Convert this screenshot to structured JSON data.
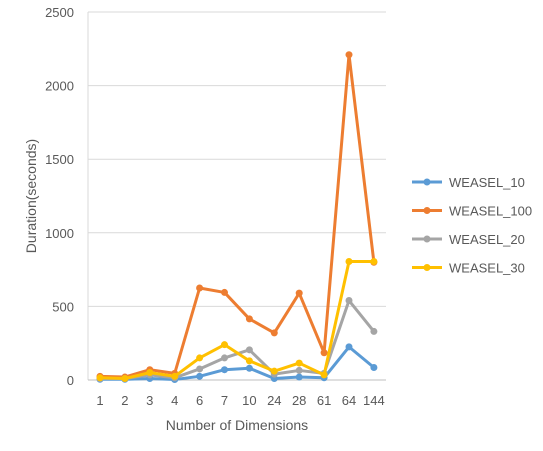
{
  "chart_data": {
    "type": "line",
    "title": "",
    "xlabel": "Number of Dimensions",
    "ylabel": "Duration(seconds)",
    "categories": [
      "1",
      "2",
      "3",
      "4",
      "6",
      "7",
      "10",
      "24",
      "28",
      "61",
      "64",
      "144"
    ],
    "ylim": [
      0,
      2500
    ],
    "yticks": [
      "0",
      "500",
      "1000",
      "1500",
      "2000",
      "2500"
    ],
    "grid": true,
    "legend_position": "right",
    "series": [
      {
        "name": "WEASEL_10",
        "color": "#5B9BD5",
        "values": [
          5,
          5,
          10,
          3,
          25,
          70,
          80,
          10,
          20,
          15,
          225,
          85
        ]
      },
      {
        "name": "WEASEL_100",
        "color": "#ED7D31",
        "values": [
          25,
          20,
          70,
          45,
          625,
          595,
          415,
          320,
          590,
          185,
          2210,
          800
        ]
      },
      {
        "name": "WEASEL_20",
        "color": "#A5A5A5",
        "values": [
          10,
          10,
          35,
          15,
          75,
          150,
          205,
          40,
          65,
          45,
          540,
          330
        ]
      },
      {
        "name": "WEASEL_30",
        "color": "#FFC000",
        "values": [
          15,
          10,
          50,
          25,
          150,
          240,
          130,
          60,
          115,
          35,
          805,
          805
        ]
      }
    ]
  }
}
